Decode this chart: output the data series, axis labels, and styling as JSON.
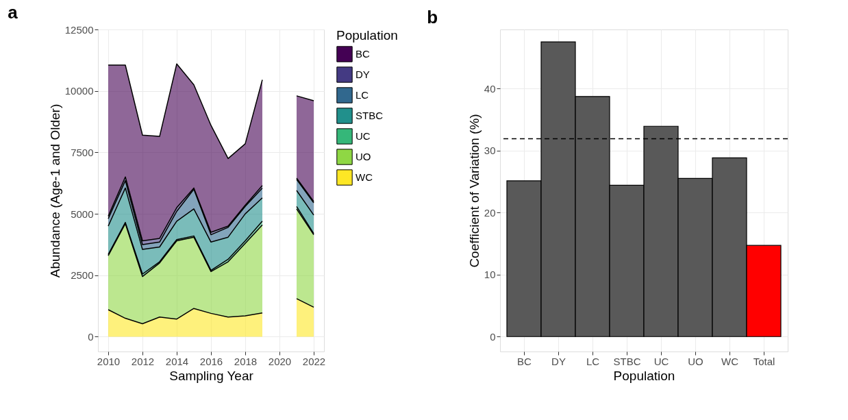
{
  "chart_data": [
    {
      "type": "area",
      "title": "a",
      "xlabel": "Sampling Year",
      "ylabel": "Abundance (Age-1 and Older)",
      "legend_title": "Population",
      "stacked": true,
      "legend": "right",
      "grid": true,
      "x": [
        2010,
        2011,
        2012,
        2013,
        2014,
        2015,
        2016,
        2017,
        2018,
        2019,
        2020,
        2021,
        2022
      ],
      "xlim": [
        2009.4,
        2022.6
      ],
      "xticks": [
        2010,
        2012,
        2014,
        2016,
        2018,
        2020,
        2022
      ],
      "ylim": [
        -600,
        12500
      ],
      "yticks": [
        0,
        2500,
        5000,
        7500,
        10000,
        12500
      ],
      "series": [
        {
          "name": "WC",
          "color": "#fde725",
          "values": [
            1100,
            750,
            530,
            800,
            720,
            1150,
            950,
            800,
            850,
            970,
            null,
            1550,
            1200
          ]
        },
        {
          "name": "UO",
          "color": "#8fd744",
          "values": [
            2200,
            3850,
            1920,
            2200,
            3180,
            2900,
            1700,
            2250,
            2950,
            3580,
            null,
            3650,
            2950
          ]
        },
        {
          "name": "UC",
          "color": "#35b779",
          "values": [
            50,
            50,
            100,
            50,
            50,
            50,
            50,
            100,
            100,
            150,
            null,
            100,
            50
          ]
        },
        {
          "name": "STBC",
          "color": "#21908c",
          "values": [
            1150,
            1400,
            1000,
            600,
            750,
            1100,
            1150,
            900,
            1100,
            950,
            null,
            650,
            750
          ]
        },
        {
          "name": "LC",
          "color": "#31688e",
          "values": [
            300,
            300,
            200,
            200,
            400,
            800,
            300,
            400,
            300,
            400,
            null,
            450,
            500
          ]
        },
        {
          "name": "DY",
          "color": "#443a83",
          "values": [
            100,
            150,
            150,
            150,
            150,
            50,
            100,
            50,
            50,
            100,
            null,
            50,
            50
          ]
        },
        {
          "name": "BC",
          "color": "#440154",
          "values": [
            6150,
            4550,
            4300,
            4150,
            5850,
            4200,
            4350,
            2750,
            2500,
            4300,
            null,
            3350,
            4100
          ]
        }
      ]
    },
    {
      "type": "bar",
      "title": "b",
      "xlabel": "Population",
      "ylabel": "Coefficient of Variation (%)",
      "grid": true,
      "categories": [
        "BC",
        "DY",
        "LC",
        "STBC",
        "UC",
        "UO",
        "WC",
        "Total"
      ],
      "values": [
        25.1,
        47.5,
        38.7,
        24.4,
        33.9,
        25.5,
        28.8,
        14.7
      ],
      "colors": [
        "#595959",
        "#595959",
        "#595959",
        "#595959",
        "#595959",
        "#595959",
        "#595959",
        "#ff0000"
      ],
      "ylim": [
        -2.4,
        49.5
      ],
      "yticks": [
        0,
        10,
        20,
        30,
        40
      ],
      "ref_lines": [
        {
          "axis": "y",
          "value": 31.9,
          "line_style": "dashed"
        }
      ]
    }
  ]
}
